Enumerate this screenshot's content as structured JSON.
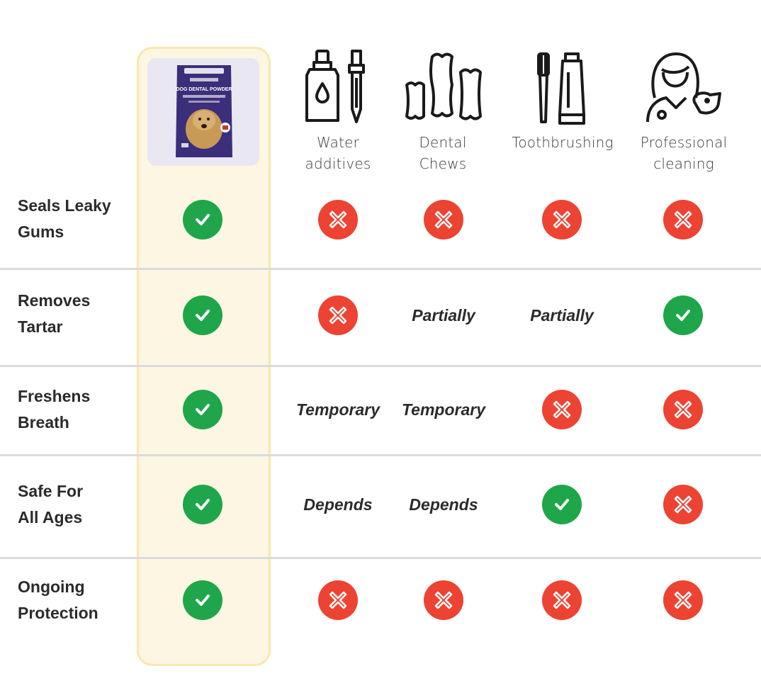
{
  "columns": [
    {
      "key": "product",
      "label": "",
      "icon": "product-pouch"
    },
    {
      "key": "water",
      "label_lines": [
        "Water",
        "additives"
      ],
      "icon": "dropper-bottle-icon"
    },
    {
      "key": "chews",
      "label_lines": [
        "Dental",
        "Chews"
      ],
      "icon": "dental-chews-icon"
    },
    {
      "key": "brush",
      "label_lines": [
        "Toothbrushing"
      ],
      "icon": "toothbrush-paste-icon"
    },
    {
      "key": "pro",
      "label_lines": [
        "Professional",
        "cleaning"
      ],
      "icon": "vet-with-dog-icon"
    }
  ],
  "rows": [
    {
      "label_lines": [
        "Seals Leaky",
        "Gums"
      ],
      "cells": [
        "yes",
        "no",
        "no",
        "no",
        "no"
      ]
    },
    {
      "label_lines": [
        "Removes",
        "Tartar"
      ],
      "cells": [
        "yes",
        "no",
        "Partially",
        "Partially",
        "yes"
      ]
    },
    {
      "label_lines": [
        "Freshens",
        "Breath"
      ],
      "cells": [
        "yes",
        "Temporary",
        "Temporary",
        "no",
        "no"
      ]
    },
    {
      "label_lines": [
        "Safe For",
        "All Ages"
      ],
      "cells": [
        "yes",
        "Depends",
        "Depends",
        "yes",
        "no"
      ]
    },
    {
      "label_lines": [
        "Ongoing",
        "Protection"
      ],
      "cells": [
        "yes",
        "no",
        "no",
        "no",
        "no"
      ]
    }
  ],
  "colors": {
    "yes": "#1fa64a",
    "no": "#ec4333",
    "highlight_bg": "#fdf6e3",
    "highlight_border": "#fbe6b0",
    "divider": "#dcdcdc"
  },
  "product_pouch": {
    "brand": "Petlab Co.",
    "title": "DOG DENTAL POWDER"
  }
}
